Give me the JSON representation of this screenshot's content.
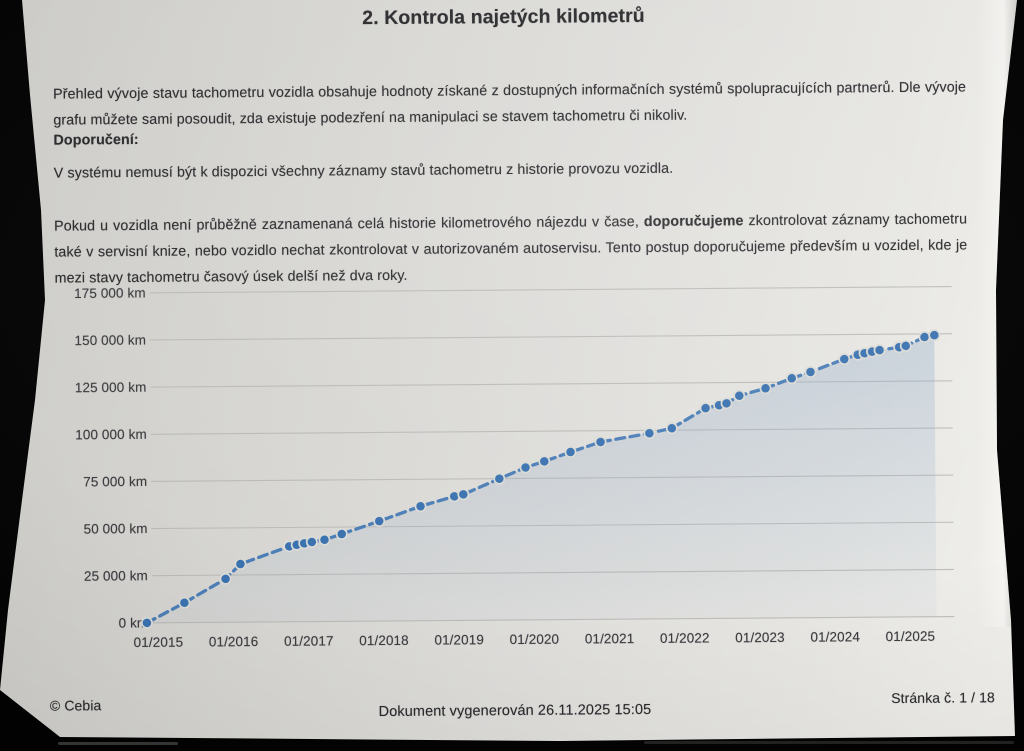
{
  "doc": {
    "section_title": "2. Kontrola najetých kilometrů",
    "intro": "Přehled vývoje stavu tachometru vozidla obsahuje hodnoty získané z dostupných informačních systémů spolupracujících partnerů. Dle vývoje grafu můžete sami posoudit, zda existuje podezření na manipulaci se stavem tachometru či nikoliv.",
    "recommendation_label": "Doporučení:",
    "recommendation_note": "V systému nemusí být k dispozici všechny záznamy stavů tachometru z historie provozu vozidla.",
    "advice": {
      "part1": "Pokud u vozidla není průběžně zaznamenaná celá historie kilometrového nájezdu v čase, ",
      "bold": "doporučujeme",
      "part2": " zkontrolovat záznamy tachometru také v servisní knize, nebo vozidlo nechat zkontrolovat v autorizovaném autoservisu. Tento postup doporučujeme především u vozidel, kde je mezi stavy tachometru časový úsek delší než dva roky."
    }
  },
  "footer": {
    "copyright": "© Cebia",
    "generated": "Dokument vygenerován 26.11.2025 15:05",
    "page_number": "Stránka č. 1 / 18"
  },
  "chart_data": {
    "type": "line",
    "line_style": "dashed-with-dots",
    "area_fill": true,
    "grid": "horizontal",
    "legend": "none",
    "ylim": [
      0,
      175000
    ],
    "xlim_decimal_years": [
      2014.7,
      2025.8
    ],
    "y_ticks": [
      {
        "km": 0,
        "label": "0 km"
      },
      {
        "km": 25000,
        "label": "25 000 km"
      },
      {
        "km": 50000,
        "label": "50 000 km"
      },
      {
        "km": 75000,
        "label": "75 000 km"
      },
      {
        "km": 100000,
        "label": "100 000 km"
      },
      {
        "km": 125000,
        "label": "125 000 km"
      },
      {
        "km": 150000,
        "label": "150 000 km"
      },
      {
        "km": 175000,
        "label": "175 000 km"
      }
    ],
    "x_ticks": [
      {
        "year": 2015,
        "label": "01/2015"
      },
      {
        "year": 2016,
        "label": "01/2016"
      },
      {
        "year": 2017,
        "label": "01/2017"
      },
      {
        "year": 2018,
        "label": "01/2018"
      },
      {
        "year": 2019,
        "label": "01/2019"
      },
      {
        "year": 2020,
        "label": "01/2020"
      },
      {
        "year": 2021,
        "label": "01/2021"
      },
      {
        "year": 2022,
        "label": "01/2022"
      },
      {
        "year": 2023,
        "label": "01/2023"
      },
      {
        "year": 2024,
        "label": "01/2024"
      },
      {
        "year": 2025,
        "label": "01/2025"
      }
    ],
    "points_format": "[decimal_year, odometer_km]",
    "series": [
      {
        "points": [
          [
            2014.85,
            0
          ],
          [
            2015.35,
            10500
          ],
          [
            2015.9,
            23000
          ],
          [
            2016.1,
            30800
          ],
          [
            2016.75,
            40000
          ],
          [
            2016.85,
            40800
          ],
          [
            2016.95,
            41500
          ],
          [
            2017.05,
            42200
          ],
          [
            2017.22,
            43300
          ],
          [
            2017.45,
            46300
          ],
          [
            2017.95,
            53000
          ],
          [
            2018.5,
            60700
          ],
          [
            2018.95,
            65800
          ],
          [
            2019.07,
            66800
          ],
          [
            2019.55,
            75000
          ],
          [
            2019.9,
            80800
          ],
          [
            2020.15,
            84000
          ],
          [
            2020.5,
            88800
          ],
          [
            2020.9,
            94000
          ],
          [
            2021.55,
            98500
          ],
          [
            2021.85,
            101000
          ],
          [
            2022.3,
            111500
          ],
          [
            2022.48,
            113000
          ],
          [
            2022.58,
            114000
          ],
          [
            2022.75,
            118000
          ],
          [
            2023.1,
            121800
          ],
          [
            2023.45,
            127000
          ],
          [
            2023.7,
            130300
          ],
          [
            2024.15,
            137000
          ],
          [
            2024.33,
            139200
          ],
          [
            2024.42,
            140000
          ],
          [
            2024.52,
            140800
          ],
          [
            2024.62,
            141600
          ],
          [
            2024.88,
            143000
          ],
          [
            2024.97,
            143700
          ],
          [
            2025.22,
            148300
          ],
          [
            2025.35,
            149300
          ]
        ]
      }
    ],
    "colors": {
      "line": "#4579b4",
      "dot": "#3a72b0",
      "dot_halo": "#dadad6",
      "area": "#8fa9c8",
      "grid": "#b7b6b2",
      "tick_text": "#3d3d41"
    }
  }
}
